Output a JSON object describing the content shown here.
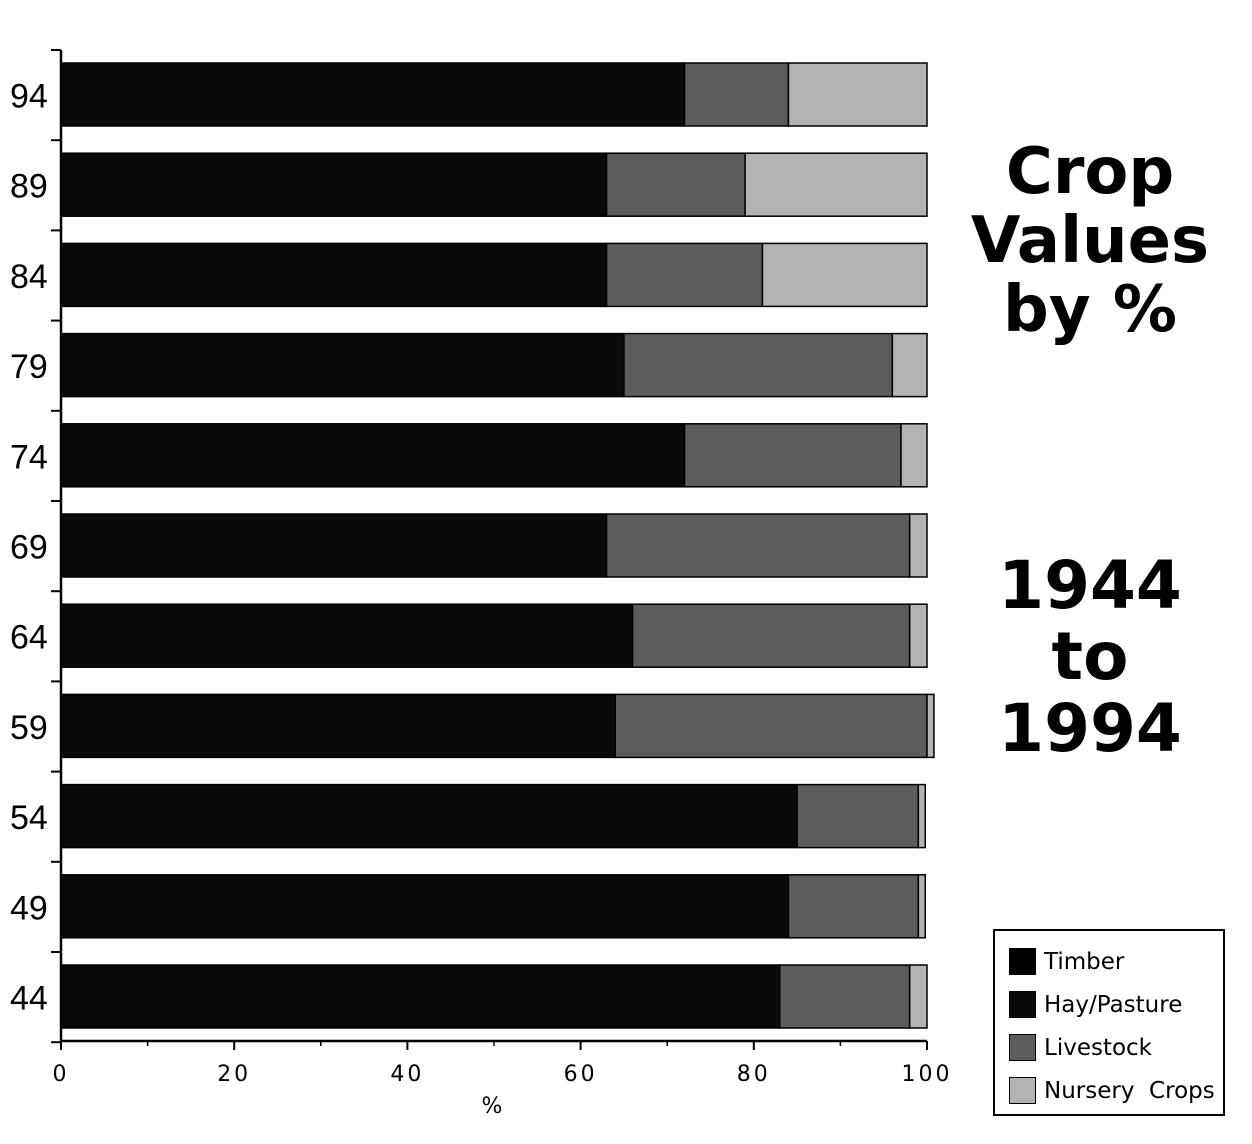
{
  "chart_data": {
    "type": "bar",
    "orientation": "horizontal",
    "stacked": true,
    "categories": [
      "94",
      "89",
      "84",
      "79",
      "74",
      "69",
      "64",
      "59",
      "54",
      "49",
      "44"
    ],
    "series": [
      {
        "name": "Timber",
        "values": [
          0,
          0,
          0,
          0,
          0,
          0,
          0,
          0,
          0,
          0,
          0
        ],
        "color": "#000000"
      },
      {
        "name": "Hay/Pasture",
        "values": [
          72,
          63,
          63,
          65,
          72,
          63,
          66,
          64,
          85,
          84,
          83
        ],
        "color": "#0a0a0a"
      },
      {
        "name": "Livestock",
        "values": [
          12,
          16,
          18,
          31,
          25,
          35,
          32,
          36,
          14,
          15,
          15
        ],
        "color": "#5c5c5c"
      },
      {
        "name": "Nursery Crops",
        "values": [
          16,
          21,
          19,
          4,
          3,
          2,
          2,
          0.8,
          0.8,
          0.8,
          2
        ],
        "color": "#b3b3b3"
      }
    ],
    "xlim": [
      0,
      100
    ],
    "xticks": [
      "0",
      "20",
      "40",
      "60",
      "80",
      "100"
    ],
    "xlabel": "%",
    "ylabel": "",
    "legend_position": "bottom-right",
    "grid": false
  },
  "title": {
    "line1": "Crop",
    "line2": "Values",
    "line3": "by %",
    "line4": "1944",
    "line5": "to",
    "line6": "1994"
  },
  "legend": {
    "items": [
      {
        "label": "Timber",
        "color": "#000000"
      },
      {
        "label": "Hay/Pasture",
        "color": "#0a0a0a"
      },
      {
        "label": "Livestock",
        "color": "#5c5c5c"
      },
      {
        "label": "Nursery  Crops",
        "color": "#b3b3b3"
      }
    ]
  }
}
